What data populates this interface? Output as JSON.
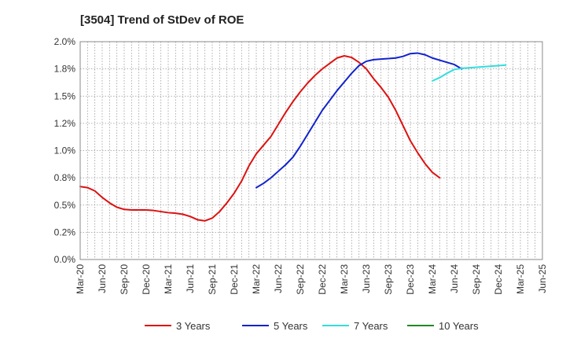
{
  "chart_data": {
    "type": "line",
    "title": "[3504]  Trend of StDev of ROE",
    "xlabel": "",
    "ylabel": "",
    "ylim": [
      0,
      2.0
    ],
    "y_ticks": [
      0,
      0.25,
      0.5,
      0.75,
      1.0,
      1.25,
      1.5,
      1.75,
      2.0
    ],
    "y_tick_labels": [
      "0.0%",
      "0.2%",
      "0.5%",
      "0.8%",
      "1.0%",
      "1.2%",
      "1.5%",
      "1.8%",
      "2.0%"
    ],
    "x_tick_labels": [
      "Mar-20",
      "Jun-20",
      "Sep-20",
      "Dec-20",
      "Mar-21",
      "Jun-21",
      "Sep-21",
      "Dec-21",
      "Mar-22",
      "Jun-22",
      "Sep-22",
      "Dec-22",
      "Mar-23",
      "Jun-23",
      "Sep-23",
      "Dec-23",
      "Mar-24",
      "Jun-24",
      "Sep-24",
      "Dec-24",
      "Mar-25",
      "Jun-25"
    ],
    "grid": true,
    "legend_position": "bottom",
    "series": [
      {
        "name": "3 Years",
        "color": "#dd1111",
        "start_index": 0,
        "values": [
          0.67,
          0.66,
          0.63,
          0.57,
          0.52,
          0.48,
          0.46,
          0.455,
          0.455,
          0.455,
          0.45,
          0.44,
          0.43,
          0.425,
          0.415,
          0.395,
          0.365,
          0.355,
          0.38,
          0.44,
          0.52,
          0.61,
          0.72,
          0.86,
          0.97,
          1.05,
          1.13,
          1.24,
          1.35,
          1.45,
          1.54,
          1.62,
          1.69,
          1.75,
          1.8,
          1.85,
          1.87,
          1.855,
          1.81,
          1.75,
          1.66,
          1.58,
          1.49,
          1.37,
          1.23,
          1.09,
          0.98,
          0.88,
          0.8,
          0.75
        ]
      },
      {
        "name": "5 Years",
        "color": "#1122cc",
        "start_index": 24,
        "values": [
          0.66,
          0.7,
          0.75,
          0.81,
          0.87,
          0.94,
          1.04,
          1.15,
          1.26,
          1.37,
          1.46,
          1.55,
          1.63,
          1.71,
          1.78,
          1.82,
          1.835,
          1.84,
          1.845,
          1.85,
          1.865,
          1.89,
          1.895,
          1.88,
          1.85,
          1.83,
          1.81,
          1.79,
          1.75
        ]
      },
      {
        "name": "7 Years",
        "color": "#33dddd",
        "start_index": 48,
        "values": [
          1.64,
          1.67,
          1.71,
          1.745,
          1.755,
          1.76,
          1.765,
          1.77,
          1.775,
          1.78,
          1.785
        ]
      },
      {
        "name": "10 Years",
        "color": "#228822",
        "start_index": 0,
        "values": []
      }
    ]
  }
}
